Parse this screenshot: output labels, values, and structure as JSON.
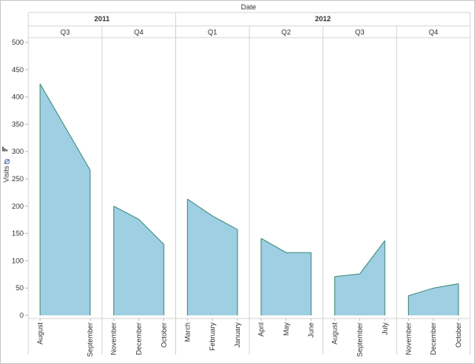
{
  "chart_data": {
    "type": "area",
    "title": "",
    "header": "Date",
    "ylabel": "Visits",
    "ylim": [
      0,
      500
    ],
    "yticks": [
      0,
      50,
      100,
      150,
      200,
      250,
      300,
      350,
      400,
      450,
      500
    ],
    "grid": false,
    "fill_color": "#9ecfe3",
    "line_color": "#3a8a7a",
    "years": [
      {
        "label": "2011",
        "quarters": 2
      },
      {
        "label": "2012",
        "quarters": 4
      }
    ],
    "panels": [
      {
        "year": "2011",
        "quarter": "Q3",
        "months": [
          "August",
          "September"
        ],
        "values": [
          424,
          266
        ]
      },
      {
        "year": "2011",
        "quarter": "Q4",
        "months": [
          "November",
          "December",
          "October"
        ],
        "values": [
          200,
          176,
          130
        ]
      },
      {
        "year": "2012",
        "quarter": "Q1",
        "months": [
          "March",
          "February",
          "January"
        ],
        "values": [
          213,
          182,
          157
        ]
      },
      {
        "year": "2012",
        "quarter": "Q2",
        "months": [
          "April",
          "May",
          "June"
        ],
        "values": [
          141,
          115,
          115
        ]
      },
      {
        "year": "2012",
        "quarter": "Q3",
        "months": [
          "August",
          "September",
          "July"
        ],
        "values": [
          71,
          76,
          137
        ]
      },
      {
        "year": "2012",
        "quarter": "Q4",
        "months": [
          "November",
          "December",
          "October"
        ],
        "values": [
          36,
          50,
          58
        ]
      }
    ]
  }
}
